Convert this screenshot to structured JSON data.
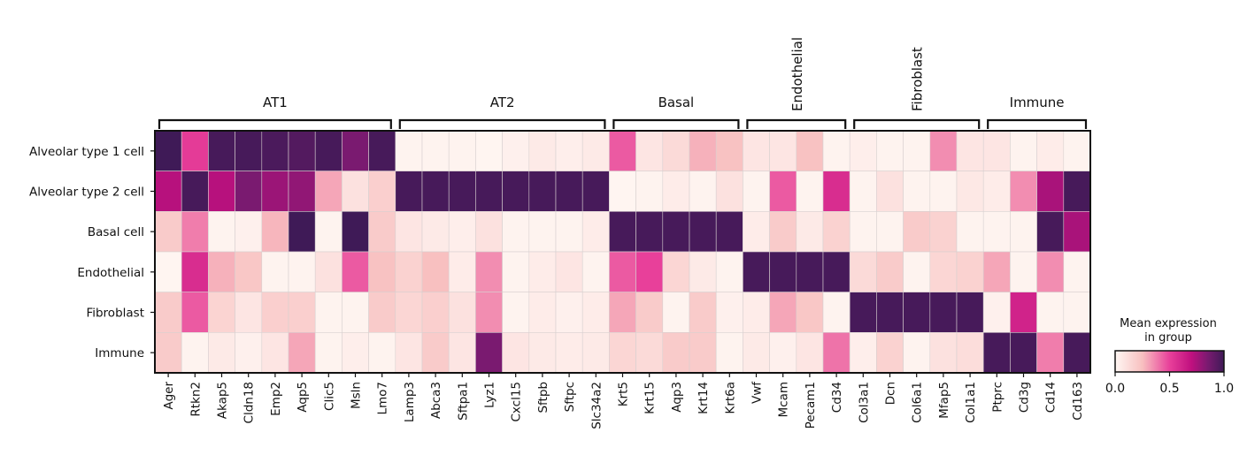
{
  "chart_data": {
    "type": "heatmap",
    "title": "",
    "xlabel": "",
    "ylabel": "",
    "groups": [
      {
        "name": "AT1",
        "genes": [
          "Ager",
          "Rtkn2",
          "Akap5",
          "Cldn18",
          "Emp2",
          "Aqp5",
          "Clic5",
          "Msln",
          "Lmo7"
        ]
      },
      {
        "name": "AT2",
        "genes": [
          "Lamp3",
          "Abca3",
          "Sftpa1",
          "Lyz1",
          "Cxcl15",
          "Sftpb",
          "Sftpc",
          "Slc34a2"
        ]
      },
      {
        "name": "Basal",
        "genes": [
          "Krt5",
          "Krt15",
          "Aqp3",
          "Krt14",
          "Krt6a"
        ]
      },
      {
        "name": "Endothelial",
        "genes": [
          "Vwf",
          "Mcam",
          "Pecam1",
          "Cd34"
        ]
      },
      {
        "name": "Fibroblast",
        "genes": [
          "Col3a1",
          "Dcn",
          "Col6a1",
          "Mfap5",
          "Col1a1"
        ]
      },
      {
        "name": "Immune",
        "genes": [
          "Ptprc",
          "Cd3g",
          "Cd14",
          "Cd163"
        ]
      }
    ],
    "rows": [
      "Alveolar type 1 cell",
      "Alveolar type 2 cell",
      "Basal cell",
      "Endothelial",
      "Fibroblast",
      "Immune"
    ],
    "values": [
      [
        1.0,
        0.52,
        0.98,
        0.98,
        0.97,
        0.95,
        0.98,
        0.85,
        0.98,
        0.02,
        0.02,
        0.02,
        0.01,
        0.03,
        0.06,
        0.04,
        0.06,
        0.45,
        0.08,
        0.13,
        0.28,
        0.24,
        0.08,
        0.08,
        0.24,
        0.02,
        0.04,
        0.02,
        0.02,
        0.35,
        0.08,
        0.08,
        0.02,
        0.05,
        0.02
      ],
      [
        0.72,
        0.98,
        0.72,
        0.85,
        0.78,
        0.8,
        0.3,
        0.1,
        0.18,
        0.98,
        0.98,
        0.98,
        0.98,
        0.98,
        0.98,
        0.98,
        0.98,
        0.01,
        0.02,
        0.05,
        0.02,
        0.1,
        0.02,
        0.45,
        0.02,
        0.58,
        0.02,
        0.1,
        0.02,
        0.02,
        0.07,
        0.05,
        0.35,
        0.75,
        0.98
      ],
      [
        0.2,
        0.38,
        0.02,
        0.03,
        0.27,
        1.0,
        0.02,
        1.0,
        0.2,
        0.08,
        0.06,
        0.04,
        0.1,
        0.02,
        0.02,
        0.02,
        0.05,
        0.98,
        0.98,
        0.98,
        0.98,
        0.98,
        0.05,
        0.2,
        0.06,
        0.17,
        0.02,
        0.02,
        0.2,
        0.17,
        0.02,
        0.02,
        0.02,
        0.98,
        0.75
      ],
      [
        0.01,
        0.58,
        0.28,
        0.22,
        0.02,
        0.02,
        0.1,
        0.45,
        0.24,
        0.17,
        0.25,
        0.05,
        0.35,
        0.02,
        0.05,
        0.08,
        0.02,
        0.45,
        0.5,
        0.15,
        0.06,
        0.02,
        0.98,
        0.98,
        0.98,
        0.98,
        0.13,
        0.2,
        0.02,
        0.15,
        0.17,
        0.3,
        0.02,
        0.35,
        0.02
      ],
      [
        0.2,
        0.45,
        0.16,
        0.08,
        0.18,
        0.18,
        0.02,
        0.02,
        0.2,
        0.15,
        0.18,
        0.1,
        0.35,
        0.02,
        0.05,
        0.03,
        0.05,
        0.3,
        0.2,
        0.02,
        0.2,
        0.03,
        0.05,
        0.3,
        0.22,
        0.02,
        0.98,
        0.98,
        0.98,
        0.98,
        0.98,
        0.03,
        0.62,
        0.02,
        0.02
      ],
      [
        0.2,
        0.02,
        0.06,
        0.03,
        0.08,
        0.3,
        0.02,
        0.04,
        0.02,
        0.08,
        0.2,
        0.08,
        0.85,
        0.08,
        0.06,
        0.05,
        0.06,
        0.15,
        0.13,
        0.2,
        0.2,
        0.02,
        0.06,
        0.03,
        0.08,
        0.4,
        0.04,
        0.17,
        0.02,
        0.1,
        0.12,
        0.98,
        0.98,
        0.38,
        0.98
      ]
    ],
    "colorbar": {
      "title_line1": "Mean expression",
      "title_line2": "in group",
      "range": [
        0,
        1
      ],
      "ticks": [
        "0.0",
        "0.5",
        "1.0"
      ],
      "colors": [
        "#fff7f3",
        "#f8c0c0",
        "#e8409a",
        "#c0107f",
        "#7a1a70",
        "#3f1a57"
      ]
    }
  }
}
